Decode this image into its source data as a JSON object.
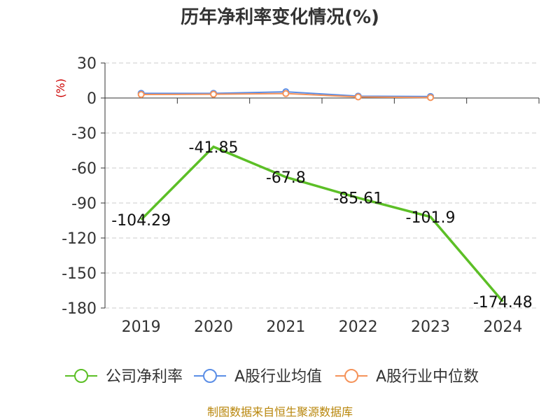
{
  "chart_data": {
    "type": "line",
    "title": "历年净利率变化情况(%)",
    "y_unit": "(%)",
    "categories": [
      "2019",
      "2020",
      "2021",
      "2022",
      "2023",
      "2024"
    ],
    "ylim": [
      -180,
      30
    ],
    "yticks": [
      30,
      0,
      -30,
      -60,
      -90,
      -120,
      -150,
      -180
    ],
    "grid": true,
    "legend_position": "bottom",
    "series": [
      {
        "name": "公司净利率",
        "color": "#5cbf26",
        "values": [
          -104.29,
          -41.85,
          -67.8,
          -85.61,
          -101.9,
          -174.48
        ],
        "labels": [
          "-104.29",
          "-41.85",
          "-67.8",
          "-85.61",
          "-101.9",
          "-174.48"
        ]
      },
      {
        "name": "A股行业均值",
        "color": "#5b8ee6",
        "values": [
          4.0,
          4.0,
          5.3,
          1.6,
          1.3,
          null
        ]
      },
      {
        "name": "A股行业中位数",
        "color": "#f5935a",
        "values": [
          3.0,
          3.2,
          3.8,
          0.9,
          0.4,
          null
        ]
      }
    ]
  },
  "source": "制图数据来自恒生聚源数据库"
}
